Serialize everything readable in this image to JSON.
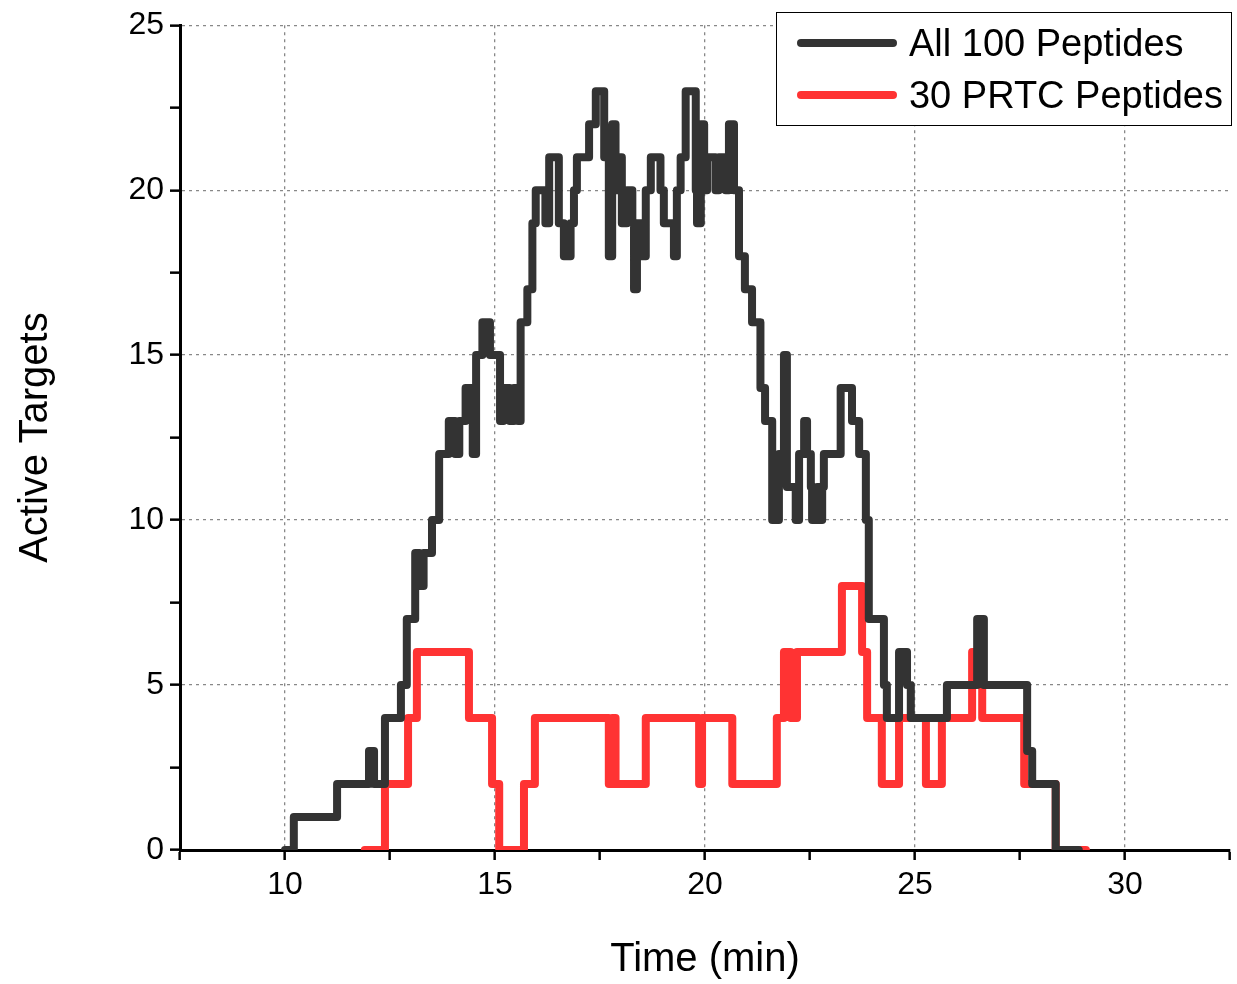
{
  "chart_data": {
    "type": "step",
    "xlabel": "Time (min)",
    "ylabel": "Active Targets",
    "xlim": [
      7.5,
      32.5
    ],
    "xticks": [
      {
        "value": 7.5,
        "label": null
      },
      10,
      {
        "value": 12.5,
        "label": null
      },
      15,
      {
        "value": 17.5,
        "label": null
      },
      20,
      {
        "value": 22.5,
        "label": null
      },
      25,
      {
        "value": 27.5,
        "label": null
      },
      30,
      {
        "value": 32.5,
        "label": null
      }
    ],
    "ylim": [
      0,
      25
    ],
    "yticks": [
      0,
      {
        "value": 2.5,
        "label": null
      },
      5,
      {
        "value": 7.5,
        "label": null
      },
      10,
      {
        "value": 12.5,
        "label": null
      },
      15,
      {
        "value": 17.5,
        "label": null
      },
      20,
      {
        "value": 22.5,
        "label": null
      },
      25
    ],
    "grid": true,
    "legend": "top right",
    "line_style": "solid",
    "marker": "none",
    "series": [
      {
        "name": "All 100 Peptides",
        "color": "#333333",
        "x": [
          10.0,
          10.21,
          11.24,
          12.0,
          12.12,
          12.38,
          12.76,
          12.9,
          13.1,
          13.2,
          13.3,
          13.5,
          13.67,
          13.9,
          14.05,
          14.15,
          14.3,
          14.47,
          14.55,
          14.7,
          14.88,
          15.12,
          15.2,
          15.35,
          15.45,
          15.55,
          15.61,
          15.77,
          15.89,
          15.97,
          16.2,
          16.29,
          16.52,
          16.64,
          16.8,
          16.88,
          16.95,
          17.24,
          17.4,
          17.6,
          17.71,
          17.79,
          17.87,
          17.95,
          18.02,
          18.14,
          18.27,
          18.31,
          18.38,
          18.5,
          18.59,
          18.71,
          18.94,
          19.02,
          19.26,
          19.33,
          19.42,
          19.54,
          19.78,
          19.81,
          19.9,
          19.98,
          20.05,
          20.25,
          20.33,
          20.49,
          20.57,
          20.69,
          20.81,
          20.95,
          21.12,
          21.32,
          21.43,
          21.6,
          21.76,
          21.88,
          21.95,
          22.16,
          22.24,
          22.36,
          22.43,
          22.52,
          22.55,
          22.67,
          22.72,
          22.79,
          22.83,
          23.23,
          23.5,
          23.67,
          23.83,
          23.9,
          24.26,
          24.33,
          24.62,
          24.81,
          24.9,
          25.76,
          26.48,
          26.64,
          27.67,
          27.79,
          28.35,
          28.9
        ],
        "values": [
          0,
          1,
          2,
          3,
          2,
          4,
          5,
          7,
          9,
          8,
          9,
          10,
          12,
          13,
          12,
          13,
          14,
          12,
          15,
          16,
          15,
          13,
          14,
          13,
          14,
          13,
          16,
          17,
          19,
          20,
          19,
          21,
          19,
          18,
          19,
          20,
          21,
          22,
          23,
          21,
          18,
          22,
          20,
          21,
          19,
          20,
          19,
          17,
          19,
          18,
          20,
          21,
          20,
          19,
          18,
          20,
          21,
          23,
          20,
          19,
          22,
          20,
          21,
          20,
          21,
          20,
          22,
          20,
          18,
          17,
          16,
          14,
          13,
          10,
          12,
          15,
          11,
          10,
          12,
          13,
          12,
          11,
          10,
          11,
          10,
          11,
          12,
          14,
          13,
          12,
          10,
          7,
          5,
          4,
          6,
          5,
          4,
          5,
          7,
          5,
          3,
          2,
          0,
          0
        ]
      },
      {
        "name": "30 PRTC Peptides",
        "color": "#ff3333",
        "x": [
          11.9,
          12.38,
          12.93,
          13.14,
          14.38,
          14.93,
          15.1,
          15.69,
          15.95,
          17.71,
          17.79,
          17.87,
          18.59,
          19.86,
          19.93,
          20.65,
          21.71,
          21.88,
          22.04,
          22.19,
          23.26,
          23.74,
          23.86,
          24.21,
          24.62,
          25.26,
          25.64,
          26.36,
          26.6,
          27.6,
          28.35,
          29.07
        ],
        "values": [
          0,
          2,
          4,
          6,
          4,
          2,
          0,
          2,
          4,
          2,
          4,
          2,
          4,
          2,
          4,
          2,
          4,
          6,
          4,
          6,
          8,
          6,
          4,
          2,
          4,
          2,
          4,
          6,
          4,
          2,
          0,
          0
        ]
      }
    ]
  }
}
